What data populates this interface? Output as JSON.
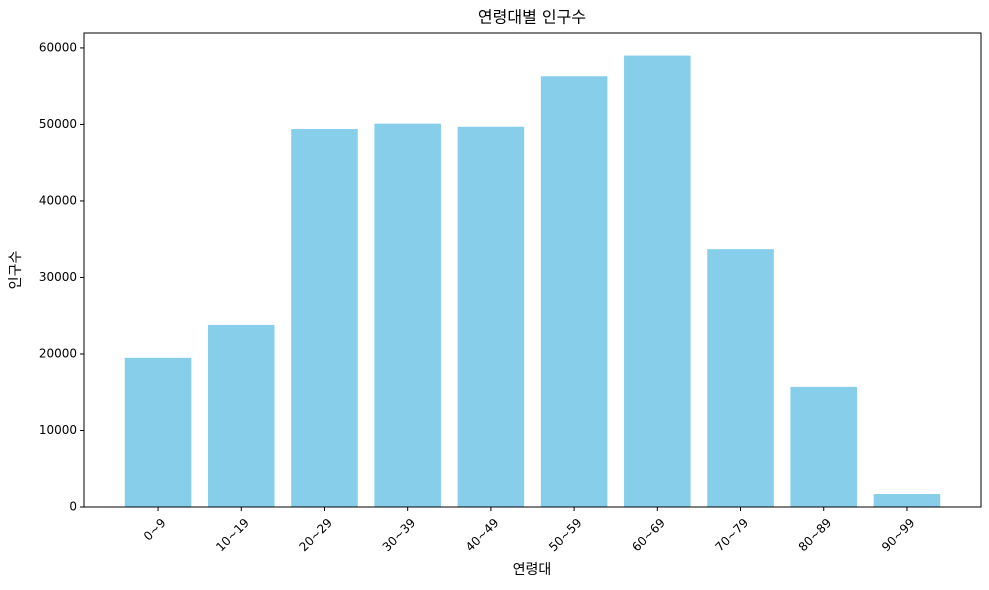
{
  "chart_data": {
    "type": "bar",
    "title": "연령대별 인구수",
    "xlabel": "연령대",
    "ylabel": "인구수",
    "categories": [
      "0~9",
      "10~19",
      "20~29",
      "30~39",
      "40~49",
      "50~59",
      "60~69",
      "70~79",
      "80~89",
      "90~99"
    ],
    "values": [
      19500,
      23800,
      49400,
      50100,
      49700,
      56300,
      59000,
      33700,
      15700,
      1700
    ],
    "color": "#87ceeb",
    "ylim": [
      0,
      61950
    ],
    "yticks": [
      0,
      10000,
      20000,
      30000,
      40000,
      50000,
      60000
    ],
    "grid": false
  }
}
